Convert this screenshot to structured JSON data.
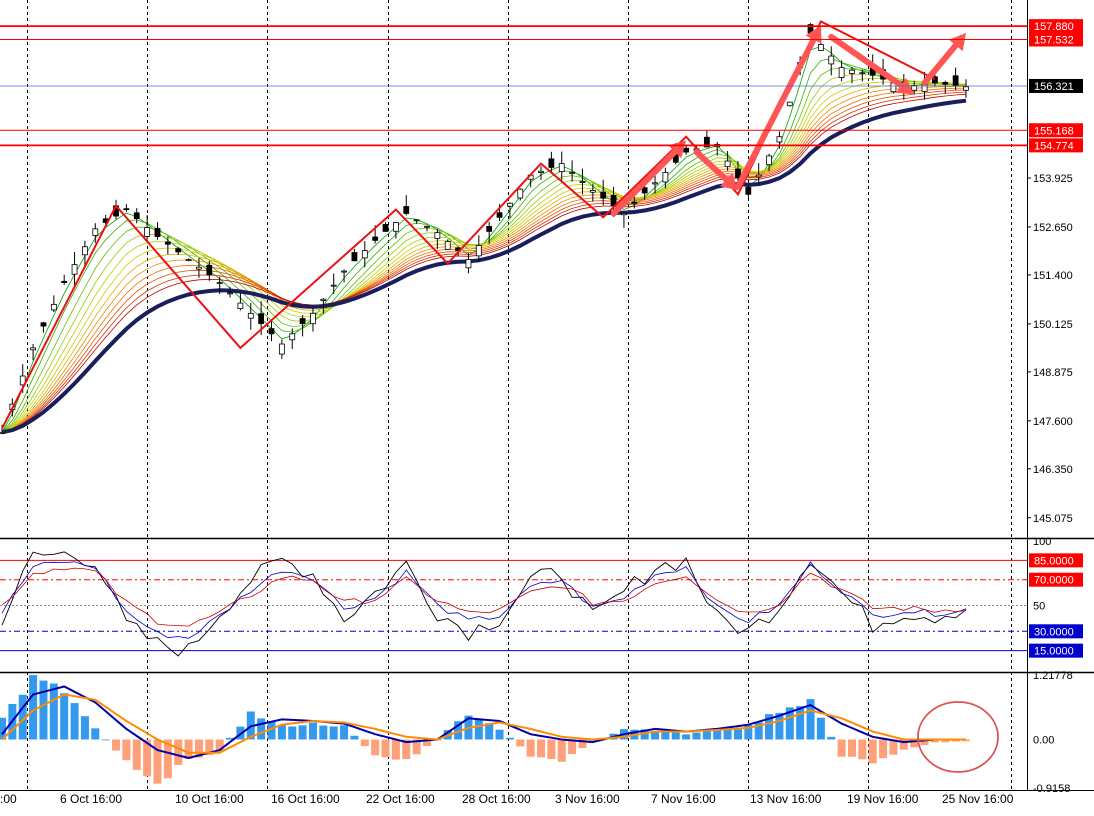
{
  "chart_data": [
    {
      "type": "candlestick",
      "title": "",
      "ylim": [
        144.6,
        158.3
      ],
      "y_tick_labels": [
        "153.925",
        "152.650",
        "151.400",
        "150.125",
        "148.875",
        "147.600",
        "146.350",
        "145.075"
      ],
      "y_ticks": [
        153.925,
        152.65,
        151.4,
        150.125,
        148.875,
        147.6,
        146.35,
        145.075
      ],
      "level_labels": [
        "157.880",
        "157.532",
        "155.168",
        "154.774"
      ],
      "levels": [
        157.88,
        157.532,
        155.168,
        154.774
      ],
      "current_price_label": "156.321",
      "current_price": 156.321,
      "x_tick_labels": [
        ":00",
        "6 Oct 16:00",
        "10 Oct 16:00",
        "16 Oct 16:00",
        "22 Oct 16:00",
        "28 Oct 16:00",
        "3 Nov 16:00",
        "7 Nov 16:00",
        "13 Nov 16:00",
        "19 Nov 16:00",
        "25 Nov 16:00"
      ],
      "price_path": {
        "x": [
          0,
          3,
          6,
          9,
          12,
          15,
          18,
          21,
          24,
          27,
          30,
          33,
          36,
          39,
          42,
          45,
          48,
          51,
          54,
          57,
          60,
          63,
          66,
          69,
          72,
          75,
          78,
          81,
          84,
          87,
          90,
          93
        ],
        "close": [
          147.3,
          149.5,
          151.2,
          152.6,
          153.1,
          152.4,
          151.8,
          151.2,
          150.4,
          149.6,
          150.4,
          151.5,
          152.3,
          153.0,
          152.5,
          151.8,
          152.9,
          154.0,
          154.3,
          153.6,
          153.0,
          153.8,
          154.6,
          154.8,
          153.5,
          155.0,
          157.7,
          156.8,
          156.6,
          156.3,
          156.4,
          156.3
        ]
      },
      "pivots": {
        "x": [
          0,
          11,
          23,
          38,
          43,
          52,
          58,
          66,
          71,
          79,
          90
        ],
        "y": [
          147.4,
          153.2,
          149.5,
          153.1,
          151.7,
          154.3,
          152.9,
          155.0,
          153.5,
          158.0,
          156.5
        ]
      },
      "arrows": [
        {
          "from": [
            59,
            153.0
          ],
          "to": [
            66,
            154.9
          ]
        },
        {
          "from": [
            67,
            154.6
          ],
          "to": [
            71,
            153.6
          ]
        },
        {
          "from": [
            71,
            153.7
          ],
          "to": [
            79,
            157.9
          ]
        },
        {
          "from": [
            80,
            157.6
          ],
          "to": [
            88,
            156.1
          ]
        },
        {
          "from": [
            89,
            156.4
          ],
          "to": [
            93,
            157.7
          ]
        }
      ]
    },
    {
      "type": "line",
      "title": "",
      "ylim": [
        0,
        100
      ],
      "y_tick_labels": [
        "100",
        "50"
      ],
      "y_ticks": [
        100,
        50
      ],
      "level_labels": [
        "85.0000",
        "70.0000",
        "30.0000",
        "15.0000"
      ],
      "levels": [
        85,
        70,
        30,
        15
      ],
      "series": [
        {
          "values": [
            40,
            88,
            90,
            85,
            35,
            20,
            15,
            45,
            70,
            85,
            75,
            40,
            60,
            82,
            45,
            30,
            40,
            70,
            75,
            40,
            60,
            80,
            85,
            40,
            30,
            50,
            88,
            60,
            35,
            45,
            42,
            48
          ]
        },
        {
          "values": [
            45,
            80,
            84,
            80,
            45,
            28,
            25,
            42,
            62,
            78,
            72,
            48,
            56,
            76,
            50,
            38,
            42,
            64,
            70,
            48,
            56,
            74,
            80,
            48,
            38,
            50,
            82,
            62,
            42,
            46,
            44,
            47
          ]
        },
        {
          "values": [
            50,
            75,
            80,
            76,
            52,
            38,
            34,
            44,
            58,
            72,
            70,
            52,
            55,
            70,
            54,
            44,
            46,
            60,
            66,
            52,
            54,
            68,
            74,
            54,
            44,
            52,
            76,
            62,
            48,
            48,
            46,
            48
          ]
        }
      ]
    },
    {
      "type": "bar",
      "title": "",
      "ylim": [
        -0.9158,
        1.21778
      ],
      "y_tick_labels": [
        "1.21778",
        "0.00",
        "-0.9158"
      ],
      "y_ticks": [
        1.21778,
        0,
        -0.9158
      ],
      "histogram": [
        0.4,
        1.15,
        0.9,
        0.2,
        -0.4,
        -0.8,
        -0.4,
        -0.2,
        0.5,
        0.25,
        0.3,
        0.25,
        -0.3,
        -0.4,
        0.0,
        0.5,
        0.2,
        -0.3,
        -0.4,
        -0.05,
        0.2,
        0.18,
        0.1,
        0.2,
        0.25,
        0.55,
        0.75,
        -0.3,
        -0.45,
        -0.18,
        -0.06,
        -0.03
      ],
      "series": [
        {
          "values": [
            0.1,
            0.85,
            1.0,
            0.7,
            0.2,
            -0.2,
            -0.35,
            -0.2,
            0.25,
            0.38,
            0.35,
            0.3,
            0.1,
            -0.05,
            0.0,
            0.4,
            0.35,
            0.1,
            0.0,
            -0.05,
            0.1,
            0.2,
            0.15,
            0.2,
            0.28,
            0.45,
            0.65,
            0.3,
            0.05,
            -0.05,
            0.0,
            0.0
          ]
        },
        {
          "values": [
            0.0,
            0.55,
            0.85,
            0.75,
            0.35,
            0.0,
            -0.25,
            -0.25,
            0.05,
            0.28,
            0.35,
            0.32,
            0.2,
            0.05,
            0.0,
            0.22,
            0.32,
            0.2,
            0.05,
            0.0,
            0.05,
            0.15,
            0.15,
            0.18,
            0.22,
            0.35,
            0.55,
            0.4,
            0.15,
            0.0,
            0.0,
            0.0
          ]
        }
      ]
    }
  ],
  "colors": {
    "background": "#ffffff",
    "grid": "#000000",
    "level_line": "#ff0000",
    "current_price": "#000000",
    "bull_candle": "#000000",
    "arrow": "#ff5555",
    "ema_slow": "#1a1f5c",
    "osc_1": "#000000",
    "osc_2": "#0000cc",
    "osc_3": "#cc0000",
    "hist_pos": "#3399ee",
    "hist_neg": "#ffa07a",
    "signal_1": "#0000aa",
    "signal_2": "#ff8c00",
    "highlight_circle": "#e05050"
  }
}
